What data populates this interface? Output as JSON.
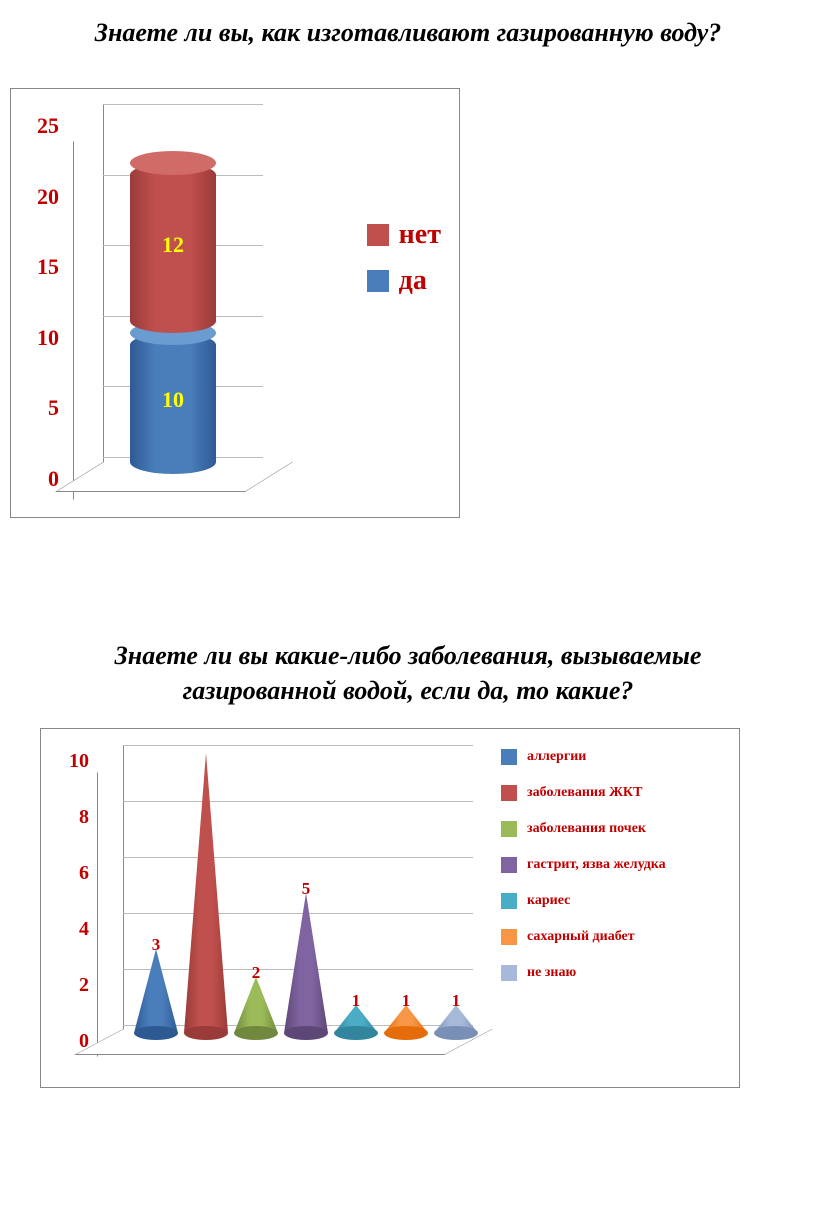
{
  "chart1": {
    "title": "Знаете ли вы, как изготавливают газированную воду?",
    "type": "stacked-cylinder",
    "segments": [
      {
        "label": "да",
        "value": 10,
        "color": "#4a7ebb",
        "color_dark": "#2e5a94",
        "color_top": "#6a9bd1"
      },
      {
        "label": "нет",
        "value": 12,
        "color": "#c0504d",
        "color_dark": "#9a3b39",
        "color_top": "#d16b68"
      }
    ],
    "ymax": 25,
    "ytick_step": 5,
    "yticks": [
      "0",
      "5",
      "10",
      "15",
      "20",
      "25"
    ],
    "axis_label_color": "#c00000",
    "value_label_color": "#ffff00",
    "background_color": "#ffffff",
    "border_color": "#888888",
    "legend_order": [
      "нет",
      "да"
    ],
    "title_fontsize": 26
  },
  "chart2": {
    "title": "Знаете ли вы какие-либо заболевания, вызываемые газированной водой, если да, то какие?",
    "type": "cone",
    "series": [
      {
        "label": "аллергии",
        "value": 3,
        "show_value": true,
        "color": "#4a7ebb",
        "color_dark": "#2e5a94"
      },
      {
        "label": "заболевания ЖКТ",
        "value": 10,
        "show_value": false,
        "color": "#c0504d",
        "color_dark": "#9a3b39"
      },
      {
        "label": "заболевания почек",
        "value": 2,
        "show_value": true,
        "color": "#9bbb59",
        "color_dark": "#71893f"
      },
      {
        "label": "гастрит, язва желудка",
        "value": 5,
        "show_value": true,
        "color": "#8064a2",
        "color_dark": "#5c4776"
      },
      {
        "label": "кариес",
        "value": 1,
        "show_value": true,
        "color": "#4bacc6",
        "color_dark": "#31859c"
      },
      {
        "label": "сахарный диабет",
        "value": 1,
        "show_value": true,
        "color": "#f79646",
        "color_dark": "#e46c0a"
      },
      {
        "label": "не знаю",
        "value": 1,
        "show_value": true,
        "color": "#a6b9d8",
        "color_dark": "#7a8fb5"
      }
    ],
    "ymax": 10,
    "ytick_step": 2,
    "yticks": [
      "0",
      "2",
      "4",
      "6",
      "8",
      "10"
    ],
    "axis_label_color": "#c00000",
    "value_label_color": "#c00000",
    "background_color": "#ffffff",
    "border_color": "#888888",
    "title_fontsize": 26
  }
}
